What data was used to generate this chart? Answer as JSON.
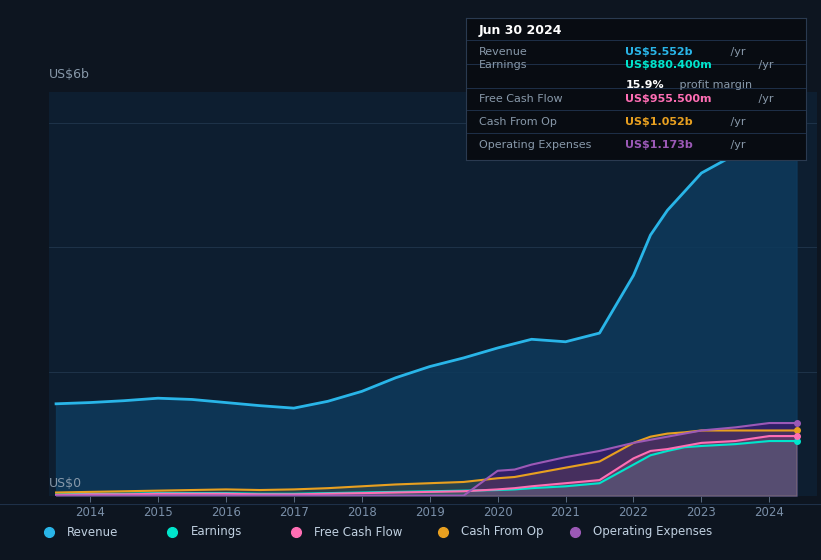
{
  "bg_color": "#0d1520",
  "plot_area_color": "#0d1e30",
  "grid_color": "#263d55",
  "x_years": [
    2013.5,
    2014.0,
    2014.5,
    2015.0,
    2015.5,
    2016.0,
    2016.5,
    2017.0,
    2017.5,
    2018.0,
    2018.5,
    2019.0,
    2019.5,
    2020.0,
    2020.25,
    2020.5,
    2021.0,
    2021.5,
    2022.0,
    2022.25,
    2022.5,
    2022.75,
    2023.0,
    2023.5,
    2024.0,
    2024.4
  ],
  "revenue": [
    1.48,
    1.5,
    1.53,
    1.57,
    1.55,
    1.5,
    1.45,
    1.41,
    1.52,
    1.68,
    1.9,
    2.08,
    2.22,
    2.38,
    2.45,
    2.52,
    2.48,
    2.62,
    3.55,
    4.2,
    4.6,
    4.9,
    5.2,
    5.5,
    5.55,
    5.55
  ],
  "earnings": [
    0.02,
    0.03,
    0.03,
    0.04,
    0.04,
    0.04,
    0.03,
    0.03,
    0.04,
    0.05,
    0.06,
    0.07,
    0.08,
    0.09,
    0.1,
    0.12,
    0.15,
    0.2,
    0.5,
    0.65,
    0.72,
    0.78,
    0.8,
    0.83,
    0.88,
    0.88
  ],
  "free_cash_flow": [
    0.01,
    0.02,
    0.02,
    0.03,
    0.03,
    0.03,
    0.02,
    0.02,
    0.03,
    0.04,
    0.05,
    0.06,
    0.07,
    0.1,
    0.12,
    0.15,
    0.2,
    0.25,
    0.6,
    0.72,
    0.75,
    0.8,
    0.85,
    0.88,
    0.96,
    0.96
  ],
  "cash_from_op": [
    0.05,
    0.06,
    0.07,
    0.08,
    0.09,
    0.1,
    0.09,
    0.1,
    0.12,
    0.15,
    0.18,
    0.2,
    0.22,
    0.28,
    0.3,
    0.35,
    0.45,
    0.55,
    0.85,
    0.95,
    1.0,
    1.02,
    1.05,
    1.05,
    1.05,
    1.05
  ],
  "operating_expenses": [
    0.0,
    0.0,
    0.0,
    0.0,
    0.0,
    0.0,
    0.0,
    0.0,
    0.0,
    0.0,
    0.0,
    0.0,
    0.0,
    0.4,
    0.42,
    0.5,
    0.62,
    0.72,
    0.85,
    0.9,
    0.95,
    1.0,
    1.05,
    1.1,
    1.17,
    1.17
  ],
  "revenue_color": "#29b5e8",
  "revenue_fill": "#0d3a5c",
  "earnings_color": "#00e5cc",
  "free_cash_flow_color": "#ff6eb4",
  "cash_from_op_color": "#e8a020",
  "operating_expenses_color": "#9b59b6",
  "operating_expenses_fill": "#3d1a6e",
  "info_box_bg": "#080c12",
  "info_box_border": "#2a3a50",
  "info_date": "Jun 30 2024",
  "info_revenue_label": "Revenue",
  "info_revenue_value_colored": "US$5.552b",
  "info_revenue_value_plain": " /yr",
  "info_earnings_label": "Earnings",
  "info_earnings_value_colored": "US$880.400m",
  "info_earnings_value_plain": " /yr",
  "info_margin_bold": "15.9%",
  "info_margin_plain": " profit margin",
  "info_fcf_label": "Free Cash Flow",
  "info_fcf_value_colored": "US$955.500m",
  "info_fcf_value_plain": " /yr",
  "info_cashop_label": "Cash From Op",
  "info_cashop_value_colored": "US$1.052b",
  "info_cashop_value_plain": " /yr",
  "info_opex_label": "Operating Expenses",
  "info_opex_value_colored": "US$1.173b",
  "info_opex_value_plain": " /yr",
  "legend_items": [
    "Revenue",
    "Earnings",
    "Free Cash Flow",
    "Cash From Op",
    "Operating Expenses"
  ],
  "legend_colors": [
    "#29b5e8",
    "#00e5cc",
    "#ff6eb4",
    "#e8a020",
    "#9b59b6"
  ],
  "ylim": [
    0,
    6.5
  ],
  "xlim": [
    2013.4,
    2024.7
  ],
  "ylabel_6b": "US$6b",
  "ylabel_0": "US$0"
}
